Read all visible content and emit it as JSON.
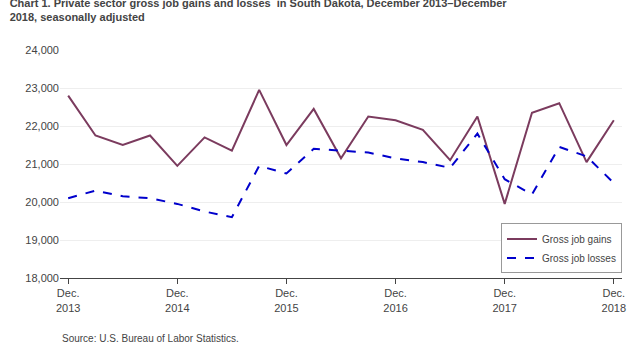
{
  "chart_data": {
    "type": "line",
    "title": "Chart 1. Private sector gross job gains and losses  in South Dakota, December 2013–December\n2018, seasonally adjusted",
    "annotations": [
      "Source: U.S. Bureau of Labor Statistics."
    ],
    "categories": [
      "Dec.\n2013",
      null,
      null,
      null,
      "Dec.\n2014",
      null,
      null,
      null,
      "Dec.\n2015",
      null,
      null,
      null,
      "Dec.\n2016",
      null,
      null,
      null,
      "Dec.\n2017",
      null,
      null,
      null,
      "Dec.\n2018"
    ],
    "series": [
      {
        "name": "Gross job gains",
        "color": "#7b3b5e",
        "line_style": "solid",
        "values": [
          22800,
          21750,
          21500,
          21750,
          20950,
          21700,
          21350,
          22950,
          21500,
          22450,
          21150,
          22250,
          22150,
          21900,
          21100,
          22250,
          19950,
          22350,
          22600,
          21050,
          22150
        ]
      },
      {
        "name": "Gross job losses",
        "color": "#0000cc",
        "line_style": "dashed",
        "values": [
          20100,
          20300,
          20150,
          20100,
          19950,
          19750,
          19600,
          20950,
          20750,
          21400,
          21350,
          21300,
          21150,
          21050,
          20900,
          21800,
          20600,
          20200,
          21450,
          21200,
          20500
        ]
      }
    ],
    "ylim": [
      18000,
      24000
    ],
    "yticks": [
      {
        "value": 18000,
        "label": "18,000"
      },
      {
        "value": 19000,
        "label": "19,000"
      },
      {
        "value": 20000,
        "label": "20,000"
      },
      {
        "value": 21000,
        "label": "21,000"
      },
      {
        "value": 22000,
        "label": "22,000"
      },
      {
        "value": 23000,
        "label": "23,000"
      },
      {
        "value": 24000,
        "label": "24,000"
      }
    ],
    "grid": true,
    "legend": "lower right"
  }
}
